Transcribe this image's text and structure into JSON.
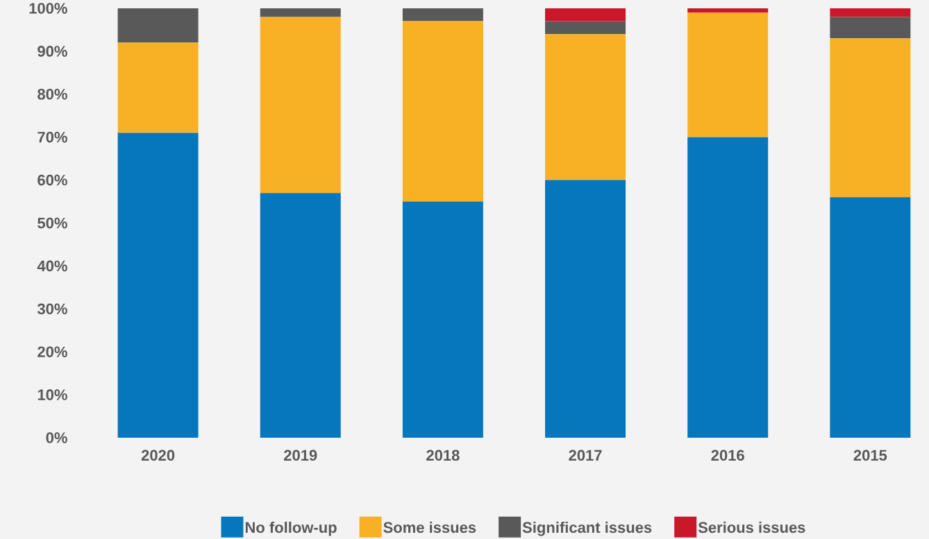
{
  "chart_data": {
    "type": "bar",
    "stacked": true,
    "categories": [
      "2020",
      "2019",
      "2018",
      "2017",
      "2016",
      "2015"
    ],
    "series": [
      {
        "name": "No follow-up",
        "color": "#0677bd",
        "values": [
          71,
          57,
          55,
          60,
          70,
          56
        ]
      },
      {
        "name": "Some issues",
        "color": "#f8b124",
        "values": [
          21,
          41,
          42,
          34,
          29,
          37
        ]
      },
      {
        "name": "Significant issues",
        "color": "#595959",
        "values": [
          8,
          2,
          3,
          3,
          0,
          5
        ]
      },
      {
        "name": "Serious issues",
        "color": "#c8182a",
        "values": [
          0,
          0,
          0,
          3,
          1,
          2
        ]
      }
    ],
    "ylim": [
      0,
      100
    ],
    "yticks": [
      {
        "value": 0,
        "label": "0%"
      },
      {
        "value": 10,
        "label": "10%"
      },
      {
        "value": 20,
        "label": "20%"
      },
      {
        "value": 30,
        "label": "30%"
      },
      {
        "value": 40,
        "label": "40%"
      },
      {
        "value": 50,
        "label": "50%"
      },
      {
        "value": 60,
        "label": "60%"
      },
      {
        "value": 70,
        "label": "70%"
      },
      {
        "value": 80,
        "label": "80%"
      },
      {
        "value": 90,
        "label": "90%"
      },
      {
        "value": 100,
        "label": "100%"
      }
    ],
    "legend": "bottom",
    "grid": false
  }
}
